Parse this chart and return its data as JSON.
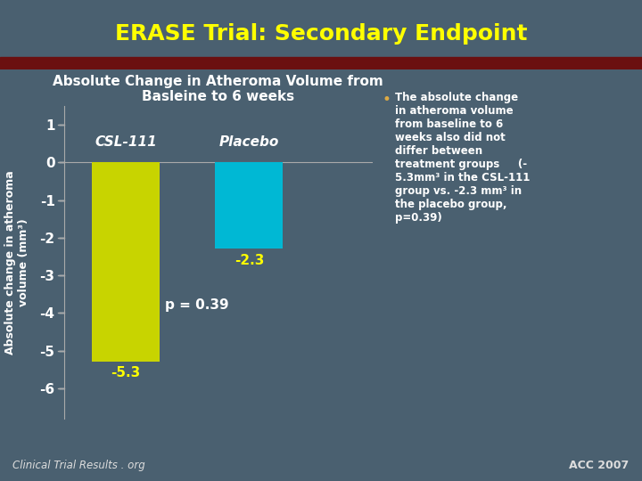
{
  "title": "ERASE Trial: Secondary Endpoint",
  "subtitle_line1": "Absolute Change in Atheroma Volume from",
  "subtitle_line2": "Basleine to 6 weeks",
  "categories": [
    "CSL-111",
    "Placebo"
  ],
  "values": [
    -5.3,
    -2.3
  ],
  "bar_colors": [
    "#c8d400",
    "#00b8d4"
  ],
  "bar_labels": [
    "-5.3",
    "-2.3"
  ],
  "ylabel_line1": "Absolute change in atheroma",
  "ylabel_line2": "volume (mm³)",
  "ylim": [
    -6.8,
    1.5
  ],
  "yticks": [
    1,
    0,
    -1,
    -2,
    -3,
    -4,
    -5,
    -6
  ],
  "p_value_text": "p = 0.39",
  "annotation_text": "The absolute change\nin atheroma volume\nfrom baseline to 6\nweeks also did not\ndiffer between\ntreatment groups     (-\n5.3mm³ in the CSL-111\ngroup vs. -2.3 mm³ in\nthe placebo group,\np=0.39)",
  "footer_left": "Clinical Trial Results . org",
  "footer_right": "ACC 2007",
  "title_color": "#ffff00",
  "subtitle_color": "#ffffff",
  "bar_label_color": "#ffff00",
  "ylabel_color": "#ffffff",
  "ytick_color": "#ffffff",
  "annotation_color": "#ffffff",
  "bg_main_color": "#4a6070",
  "bg_title_color": "#2a3545",
  "annotation_bullet_color": "#ddaa44",
  "p_value_color": "#ffffff",
  "category_label_color": "#ffffff",
  "darkred_stripe": "#6b1010",
  "footer_color": "#dddddd"
}
